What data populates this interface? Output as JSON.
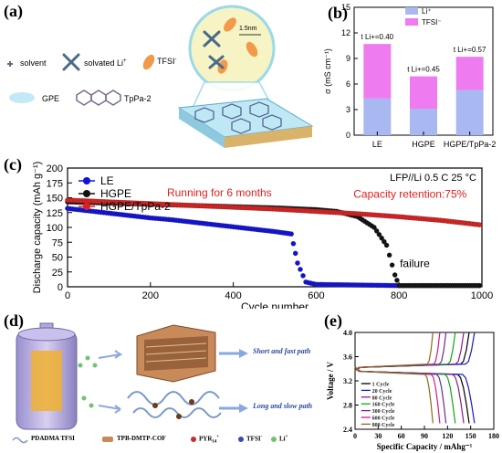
{
  "panels": {
    "a": "(a)",
    "b": "(b)",
    "c": "(c)",
    "d": "(d)",
    "e": "(e)"
  },
  "panel_a": {
    "legend": {
      "solvent": "solvent",
      "solvated_li": "solvated Li",
      "tfsi": "TFSI",
      "gpe": "GPE",
      "tppa": "TpPa-2"
    },
    "scale": "1.5nm"
  },
  "panel_d": {
    "short_path": "Short and fast path",
    "long_path": "Long and slow path",
    "legend": {
      "pdadma": "PDADMA TFSI",
      "cof": "TPB-DMTP-COF",
      "pyr": "PYR",
      "tfsi": "TFSI",
      "li": "Li"
    }
  },
  "colors": {
    "li": "#a9b8f0",
    "tfsi": "#ee7cf0",
    "le": "#1010e0",
    "hgpe": "#111111",
    "hgpe_tppa": "#e02020"
  },
  "chart_data": [
    {
      "id": "b",
      "type": "bar",
      "stacked": true,
      "categories": [
        "LE",
        "HGPE",
        "HGPE/TpPa-2"
      ],
      "series": [
        {
          "name": "Li",
          "values": [
            4.3,
            3.1,
            5.3
          ]
        },
        {
          "name": "TFSI",
          "values": [
            6.4,
            3.8,
            3.9
          ]
        }
      ],
      "annotations": [
        "t Li+=0.40",
        "t Li+=0.45",
        "t Li+=0.57"
      ],
      "ylabel": "σ (mS cm⁻¹)",
      "yticks": [
        "0",
        "3",
        "6",
        "9",
        "12",
        "15"
      ],
      "ylim": [
        0,
        15
      ]
    },
    {
      "id": "c",
      "type": "scatter",
      "xlabel": "Cycle number",
      "ylabel": "Discharge capacity (mAh g⁻¹)",
      "xlim": [
        0,
        1000
      ],
      "ylim": [
        0,
        200
      ],
      "xticks": [
        "0",
        "200",
        "400",
        "600",
        "800",
        "1000"
      ],
      "yticks": [
        "0",
        "25",
        "50",
        "75",
        "100",
        "125",
        "150",
        "175",
        "200"
      ],
      "condition": "LFP//Li  0.5 C  25 °C",
      "annotations": {
        "running": "Running for 6 months",
        "retention": "Capacity retention:75%",
        "failure": "failure"
      },
      "series": [
        {
          "name": "LE",
          "points": [
            [
              0,
              132
            ],
            [
              50,
              128
            ],
            [
              100,
              124
            ],
            [
              150,
              120
            ],
            [
              200,
              116
            ],
            [
              250,
              113
            ],
            [
              300,
              109
            ],
            [
              350,
              105
            ],
            [
              400,
              101
            ],
            [
              450,
              97
            ],
            [
              500,
              93
            ],
            [
              540,
              89
            ],
            [
              555,
              40
            ],
            [
              575,
              8
            ],
            [
              600,
              4
            ],
            [
              700,
              3
            ],
            [
              800,
              2
            ],
            [
              900,
              2
            ],
            [
              1000,
              2
            ]
          ]
        },
        {
          "name": "HGPE",
          "points": [
            [
              0,
              143
            ],
            [
              100,
              141
            ],
            [
              200,
              139
            ],
            [
              300,
              137
            ],
            [
              400,
              135
            ],
            [
              500,
              133
            ],
            [
              600,
              130
            ],
            [
              650,
              127
            ],
            [
              700,
              118
            ],
            [
              740,
              100
            ],
            [
              770,
              70
            ],
            [
              790,
              20
            ],
            [
              800,
              2
            ],
            [
              900,
              2
            ],
            [
              1000,
              2
            ]
          ]
        },
        {
          "name": "HGPE/TpPa-2",
          "points": [
            [
              0,
              146
            ],
            [
              100,
              143
            ],
            [
              200,
              140
            ],
            [
              300,
              137
            ],
            [
              400,
              134
            ],
            [
              500,
              131
            ],
            [
              600,
              127
            ],
            [
              700,
              123
            ],
            [
              800,
              118
            ],
            [
              900,
              112
            ],
            [
              1000,
              104
            ]
          ]
        }
      ]
    },
    {
      "id": "e",
      "type": "line",
      "xlabel": "Specific Capacity / mAhg⁻¹",
      "ylabel": "Voltage / V",
      "xlim": [
        0,
        180
      ],
      "ylim": [
        2.4,
        4.0
      ],
      "xticks": [
        "0",
        "30",
        "60",
        "90",
        "120",
        "150",
        "180"
      ],
      "yticks": [
        "2.4",
        "2.8",
        "3.2",
        "3.6",
        "4.0"
      ],
      "series": [
        {
          "name": "1   Cycle",
          "color": "#000000",
          "capacity": 148
        },
        {
          "name": "20  Cycle",
          "color": "#1a1ac8",
          "capacity": 155
        },
        {
          "name": "80  Cycle",
          "color": "#8c1a8c",
          "capacity": 141
        },
        {
          "name": "160 Cycle",
          "color": "#17a017",
          "capacity": 130
        },
        {
          "name": "300 Cycle",
          "color": "#6a2a9a",
          "capacity": 118
        },
        {
          "name": "600 Cycle",
          "color": "#d01a8a",
          "capacity": 110
        },
        {
          "name": "800 Cycle",
          "color": "#8a6a1a",
          "capacity": 101
        }
      ]
    }
  ]
}
